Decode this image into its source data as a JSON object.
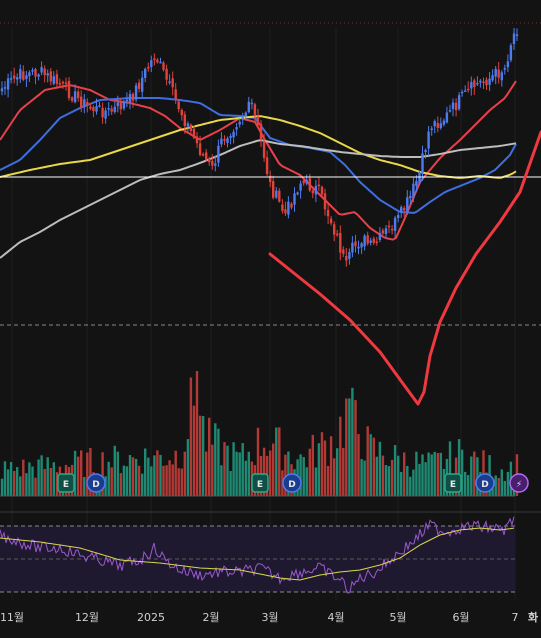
{
  "chart_data": {
    "type": "candlestick",
    "x_ticks": [
      "11월",
      "12월",
      "2025",
      "2월",
      "3월",
      "4월",
      "5월",
      "6월",
      "7",
      "화"
    ],
    "price_panel": {
      "candles_count": 170,
      "trend_shape": "rally to Dec-Jan, decline to April low, strong recovery to new high",
      "moving_averages": [
        {
          "name": "ma-short",
          "color": "#e8414a"
        },
        {
          "name": "ma-mid",
          "color": "#3e6ee0"
        },
        {
          "name": "ma-long",
          "color": "#e8d84a"
        },
        {
          "name": "ma-longest",
          "color": "#bdbdbd"
        }
      ],
      "horizontal_line_color": "#ffffff",
      "annotation": {
        "shape": "hand-drawn V",
        "color": "#f0393f"
      }
    },
    "volume_panel": {
      "up_color": "#1f8a73",
      "down_color": "#b23a36"
    },
    "events": [
      {
        "label": "E",
        "kind": "earnings"
      },
      {
        "label": "D",
        "kind": "dividend"
      },
      {
        "label": "E",
        "kind": "earnings"
      },
      {
        "label": "D",
        "kind": "dividend"
      },
      {
        "label": "E",
        "kind": "earnings"
      },
      {
        "label": "D",
        "kind": "dividend"
      },
      {
        "label": "⚡",
        "kind": "flash"
      }
    ],
    "rsi_panel": {
      "line_color": "#9b59d0",
      "signal_color": "#d8d84a",
      "band_color": "#1f1930"
    },
    "colors": {
      "up": "#1f9e86",
      "down": "#e0423c",
      "background": "#131313"
    }
  }
}
